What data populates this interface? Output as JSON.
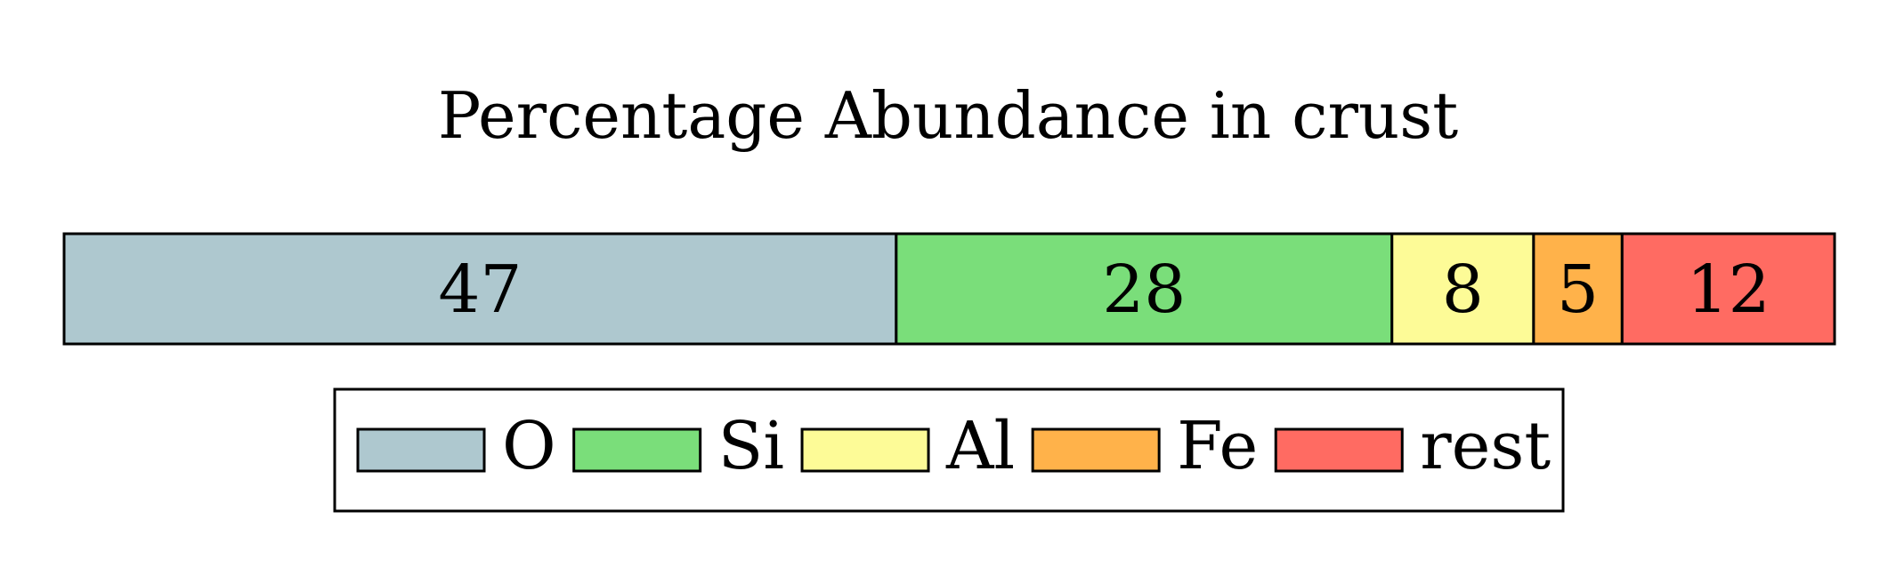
{
  "chart_data": {
    "type": "bar",
    "stacked": true,
    "orientation": "horizontal",
    "title": "Percentage Abundance in crust",
    "categories": [
      "O",
      "Si",
      "Al",
      "Fe",
      "rest"
    ],
    "values": [
      47,
      28,
      8,
      5,
      12
    ],
    "value_labels": [
      "47",
      "28",
      "8",
      "5",
      "12"
    ],
    "colors": [
      "#aec8cf",
      "#7ade7a",
      "#fdfb97",
      "#ffb24a",
      "#ff6b62"
    ],
    "xlim": [
      0,
      100
    ],
    "legend_position": "bottom",
    "grid": false,
    "axes_visible": false
  }
}
